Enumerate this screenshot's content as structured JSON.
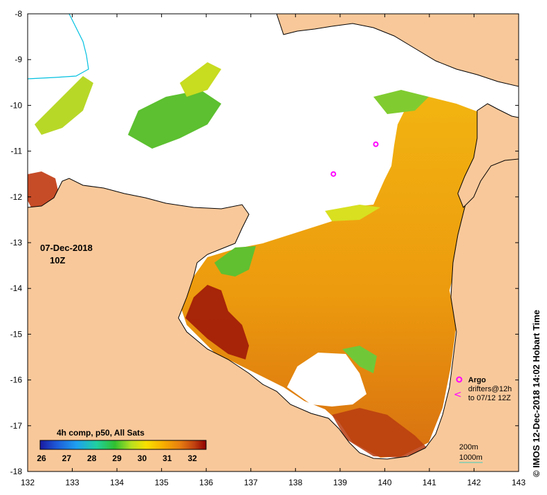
{
  "map": {
    "date": "07-Dec-2018",
    "time": "10Z",
    "credit": "© IMOS 12-Dec-2018 14:02 Hobart Time",
    "x_ticks": [
      "132",
      "133",
      "134",
      "135",
      "136",
      "137",
      "138",
      "139",
      "140",
      "141",
      "142",
      "143"
    ],
    "y_ticks": [
      "-8",
      "-9",
      "-10",
      "-11",
      "-12",
      "-13",
      "-14",
      "-15",
      "-16",
      "-17",
      "-18"
    ],
    "lon_range": [
      132,
      143
    ],
    "lat_range": [
      -18,
      -8
    ],
    "colors": {
      "land": "#f9c89a",
      "no_data": "#ffffff",
      "coast": "#000000",
      "river": "#00c0e0"
    }
  },
  "colorbar": {
    "title": "4h comp, p50, All Sats",
    "ticks": [
      "26",
      "27",
      "28",
      "29",
      "30",
      "31",
      "32"
    ],
    "range": [
      26,
      32.6
    ]
  },
  "legend": {
    "argo": "Argo",
    "drifters": "drifters@12h",
    "drifters_range": "to 07/12 12Z",
    "depth_200": "200m",
    "depth_1000": "1000m",
    "argo_color": "#ff00ff",
    "drifter_color": "#ff00ff"
  },
  "argo_floats": [
    {
      "lon": 139.8,
      "lat": -10.85
    },
    {
      "lon": 138.85,
      "lat": -11.5
    }
  ]
}
